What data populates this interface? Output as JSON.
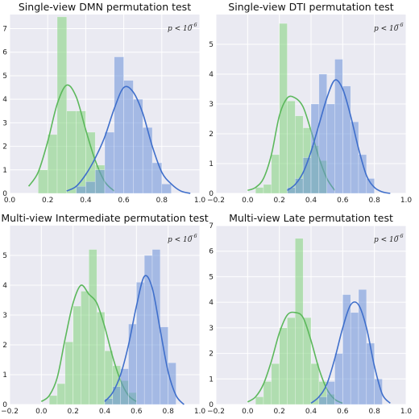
{
  "colors": {
    "background": "#eaeaf2",
    "grid": "#ffffff",
    "green_bar": "#7fd17a",
    "green_line": "#5cb85c",
    "blue_bar": "#6a8fd8",
    "blue_line": "#3f6fcb"
  },
  "chart_data": [
    {
      "type": "bar",
      "title": "Single-view DMN permutation test",
      "annotation": {
        "base": "p < 10",
        "exponent": "−6"
      },
      "xlim": [
        0.0,
        1.0
      ],
      "ylim": [
        0,
        7.6
      ],
      "xticks": [
        0.0,
        0.2,
        0.4,
        0.6,
        0.8,
        1.0
      ],
      "xtick_labels": [
        "0.0",
        "0.2",
        "0.4",
        "0.6",
        "0.8",
        "1.0"
      ],
      "yticks": [
        0,
        1,
        2,
        3,
        4,
        5,
        6,
        7
      ],
      "ytick_labels": [
        "0",
        "1",
        "2",
        "3",
        "4",
        "5",
        "6",
        "7"
      ],
      "series": [
        {
          "color": "green",
          "bins": [
            [
              0.1,
              0.15,
              0.0
            ],
            [
              0.15,
              0.2,
              1.0
            ],
            [
              0.2,
              0.25,
              2.5
            ],
            [
              0.25,
              0.3,
              7.5
            ],
            [
              0.3,
              0.35,
              3.5
            ],
            [
              0.35,
              0.4,
              3.5
            ],
            [
              0.4,
              0.45,
              2.6
            ],
            [
              0.45,
              0.5,
              1.2
            ]
          ],
          "kde": [
            [
              0.1,
              0.3
            ],
            [
              0.15,
              0.9
            ],
            [
              0.2,
              2.2
            ],
            [
              0.25,
              3.8
            ],
            [
              0.3,
              4.6
            ],
            [
              0.35,
              4.1
            ],
            [
              0.4,
              2.7
            ],
            [
              0.45,
              1.4
            ],
            [
              0.5,
              0.5
            ],
            [
              0.55,
              0.1
            ]
          ]
        },
        {
          "color": "blue",
          "bins": [
            [
              0.35,
              0.4,
              0.3
            ],
            [
              0.4,
              0.45,
              0.5
            ],
            [
              0.45,
              0.5,
              1.0
            ],
            [
              0.5,
              0.55,
              2.6
            ],
            [
              0.55,
              0.6,
              5.8
            ],
            [
              0.6,
              0.65,
              4.8
            ],
            [
              0.65,
              0.7,
              4.0
            ],
            [
              0.7,
              0.75,
              2.8
            ],
            [
              0.75,
              0.8,
              1.3
            ],
            [
              0.8,
              0.85,
              0.4
            ]
          ],
          "kde": [
            [
              0.3,
              0.1
            ],
            [
              0.35,
              0.3
            ],
            [
              0.4,
              0.8
            ],
            [
              0.45,
              1.5
            ],
            [
              0.5,
              2.4
            ],
            [
              0.55,
              3.6
            ],
            [
              0.6,
              4.5
            ],
            [
              0.65,
              4.3
            ],
            [
              0.7,
              3.4
            ],
            [
              0.75,
              2.0
            ],
            [
              0.8,
              0.9
            ],
            [
              0.85,
              0.4
            ],
            [
              0.9,
              0.1
            ],
            [
              0.95,
              0.0
            ]
          ]
        }
      ]
    },
    {
      "type": "bar",
      "title": "Single-view DTI permutation test",
      "annotation": {
        "base": "p < 10",
        "exponent": "−6"
      },
      "xlim": [
        -0.2,
        1.0
      ],
      "ylim": [
        0,
        6.0
      ],
      "xticks": [
        -0.2,
        0.0,
        0.2,
        0.4,
        0.6,
        0.8,
        1.0
      ],
      "xtick_labels": [
        "−0.2",
        "0.0",
        "0.2",
        "0.4",
        "0.6",
        "0.8",
        "1.0"
      ],
      "yticks": [
        0,
        1,
        2,
        3,
        4,
        5
      ],
      "ytick_labels": [
        "0",
        "1",
        "2",
        "3",
        "4",
        "5"
      ],
      "series": [
        {
          "color": "green",
          "bins": [
            [
              0.05,
              0.1,
              0.2
            ],
            [
              0.1,
              0.15,
              0.3
            ],
            [
              0.15,
              0.2,
              1.3
            ],
            [
              0.2,
              0.25,
              5.7
            ],
            [
              0.25,
              0.3,
              3.1
            ],
            [
              0.3,
              0.35,
              2.6
            ],
            [
              0.35,
              0.4,
              2.2
            ],
            [
              0.4,
              0.45,
              1.6
            ],
            [
              0.45,
              0.5,
              1.1
            ]
          ],
          "kde": [
            [
              0.0,
              0.1
            ],
            [
              0.05,
              0.2
            ],
            [
              0.1,
              0.5
            ],
            [
              0.15,
              1.3
            ],
            [
              0.2,
              2.6
            ],
            [
              0.25,
              3.2
            ],
            [
              0.3,
              3.2
            ],
            [
              0.35,
              2.9
            ],
            [
              0.4,
              2.1
            ],
            [
              0.45,
              1.2
            ],
            [
              0.5,
              0.5
            ],
            [
              0.55,
              0.1
            ]
          ]
        },
        {
          "color": "blue",
          "bins": [
            [
              0.25,
              0.3,
              0.2
            ],
            [
              0.3,
              0.35,
              0.5
            ],
            [
              0.35,
              0.4,
              1.2
            ],
            [
              0.4,
              0.45,
              3.0
            ],
            [
              0.45,
              0.5,
              4.0
            ],
            [
              0.5,
              0.55,
              3.0
            ],
            [
              0.55,
              0.6,
              4.5
            ],
            [
              0.6,
              0.65,
              3.6
            ],
            [
              0.65,
              0.7,
              2.4
            ],
            [
              0.7,
              0.75,
              1.3
            ],
            [
              0.75,
              0.8,
              0.5
            ]
          ],
          "kde": [
            [
              0.25,
              0.1
            ],
            [
              0.3,
              0.3
            ],
            [
              0.35,
              0.7
            ],
            [
              0.4,
              1.4
            ],
            [
              0.45,
              2.3
            ],
            [
              0.5,
              3.2
            ],
            [
              0.55,
              3.8
            ],
            [
              0.6,
              3.5
            ],
            [
              0.65,
              2.6
            ],
            [
              0.7,
              1.5
            ],
            [
              0.75,
              0.6
            ],
            [
              0.8,
              0.2
            ],
            [
              0.85,
              0.05
            ],
            [
              0.9,
              0.0
            ]
          ]
        }
      ]
    },
    {
      "type": "bar",
      "title": "Multi-view Intermediate permutation test",
      "annotation": {
        "base": "p < 10",
        "exponent": "−6"
      },
      "xlim": [
        -0.2,
        1.0
      ],
      "ylim": [
        0,
        6.0
      ],
      "xticks": [
        -0.2,
        0.0,
        0.2,
        0.4,
        0.6,
        0.8,
        1.0
      ],
      "xtick_labels": [
        "−0.2",
        "0.0",
        "0.2",
        "0.4",
        "0.6",
        "0.8",
        "1.0"
      ],
      "yticks": [
        0,
        1,
        2,
        3,
        4,
        5
      ],
      "ytick_labels": [
        "0",
        "1",
        "2",
        "3",
        "4",
        "5"
      ],
      "series": [
        {
          "color": "green",
          "bins": [
            [
              0.05,
              0.1,
              0.3
            ],
            [
              0.1,
              0.15,
              0.7
            ],
            [
              0.15,
              0.2,
              2.1
            ],
            [
              0.2,
              0.25,
              3.3
            ],
            [
              0.25,
              0.3,
              3.8
            ],
            [
              0.3,
              0.35,
              5.2
            ],
            [
              0.35,
              0.4,
              3.1
            ],
            [
              0.4,
              0.45,
              1.8
            ],
            [
              0.45,
              0.5,
              1.3
            ],
            [
              0.5,
              0.55,
              0.8
            ],
            [
              0.55,
              0.6,
              0.4
            ]
          ],
          "kde": [
            [
              0.0,
              0.1
            ],
            [
              0.05,
              0.3
            ],
            [
              0.1,
              0.9
            ],
            [
              0.15,
              2.2
            ],
            [
              0.2,
              3.4
            ],
            [
              0.25,
              4.0
            ],
            [
              0.3,
              3.7
            ],
            [
              0.35,
              3.4
            ],
            [
              0.4,
              2.6
            ],
            [
              0.45,
              1.6
            ],
            [
              0.5,
              0.8
            ],
            [
              0.55,
              0.3
            ],
            [
              0.6,
              0.1
            ]
          ]
        },
        {
          "color": "blue",
          "bins": [
            [
              0.4,
              0.45,
              0.2
            ],
            [
              0.45,
              0.5,
              0.6
            ],
            [
              0.5,
              0.55,
              1.2
            ],
            [
              0.55,
              0.6,
              2.7
            ],
            [
              0.6,
              0.65,
              4.1
            ],
            [
              0.65,
              0.7,
              5.0
            ],
            [
              0.7,
              0.75,
              5.2
            ],
            [
              0.75,
              0.8,
              2.6
            ],
            [
              0.8,
              0.85,
              1.4
            ]
          ],
          "kde": [
            [
              0.4,
              0.1
            ],
            [
              0.45,
              0.4
            ],
            [
              0.5,
              1.0
            ],
            [
              0.55,
              2.0
            ],
            [
              0.6,
              3.3
            ],
            [
              0.65,
              4.3
            ],
            [
              0.7,
              3.9
            ],
            [
              0.75,
              2.5
            ],
            [
              0.8,
              1.1
            ],
            [
              0.85,
              0.3
            ],
            [
              0.9,
              0.0
            ]
          ]
        }
      ]
    },
    {
      "type": "bar",
      "title": "Multi-view Late permutation test",
      "annotation": {
        "base": "p < 10",
        "exponent": "−6"
      },
      "xlim": [
        -0.2,
        1.0
      ],
      "ylim": [
        0,
        7.0
      ],
      "xticks": [
        -0.2,
        0.0,
        0.2,
        0.4,
        0.6,
        0.8,
        1.0
      ],
      "xtick_labels": [
        "−0.2",
        "0.0",
        "0.2",
        "0.4",
        "0.6",
        "0.8",
        "1.0"
      ],
      "yticks": [
        0,
        1,
        2,
        3,
        4,
        5,
        6,
        7
      ],
      "ytick_labels": [
        "0",
        "1",
        "2",
        "3",
        "4",
        "5",
        "6",
        "7"
      ],
      "series": [
        {
          "color": "green",
          "bins": [
            [
              0.05,
              0.1,
              0.3
            ],
            [
              0.1,
              0.15,
              0.9
            ],
            [
              0.15,
              0.2,
              1.6
            ],
            [
              0.2,
              0.25,
              3.0
            ],
            [
              0.25,
              0.3,
              3.4
            ],
            [
              0.3,
              0.35,
              6.5
            ],
            [
              0.35,
              0.4,
              3.4
            ],
            [
              0.4,
              0.45,
              1.6
            ],
            [
              0.45,
              0.5,
              0.9
            ],
            [
              0.5,
              0.55,
              0.4
            ]
          ],
          "kde": [
            [
              0.0,
              0.1
            ],
            [
              0.05,
              0.3
            ],
            [
              0.1,
              0.8
            ],
            [
              0.15,
              1.7
            ],
            [
              0.2,
              2.8
            ],
            [
              0.25,
              3.5
            ],
            [
              0.3,
              3.6
            ],
            [
              0.35,
              3.4
            ],
            [
              0.4,
              2.5
            ],
            [
              0.45,
              1.4
            ],
            [
              0.5,
              0.6
            ],
            [
              0.55,
              0.2
            ],
            [
              0.6,
              0.05
            ]
          ]
        },
        {
          "color": "blue",
          "bins": [
            [
              0.45,
              0.5,
              0.3
            ],
            [
              0.5,
              0.55,
              0.9
            ],
            [
              0.55,
              0.6,
              2.0
            ],
            [
              0.6,
              0.65,
              4.3
            ],
            [
              0.65,
              0.7,
              3.6
            ],
            [
              0.7,
              0.75,
              4.5
            ],
            [
              0.75,
              0.8,
              2.4
            ],
            [
              0.8,
              0.85,
              1.0
            ]
          ],
          "kde": [
            [
              0.4,
              0.05
            ],
            [
              0.45,
              0.3
            ],
            [
              0.5,
              0.8
            ],
            [
              0.55,
              1.8
            ],
            [
              0.6,
              3.0
            ],
            [
              0.65,
              3.9
            ],
            [
              0.7,
              3.9
            ],
            [
              0.75,
              3.0
            ],
            [
              0.8,
              1.5
            ],
            [
              0.85,
              0.4
            ],
            [
              0.9,
              0.05
            ]
          ]
        }
      ]
    }
  ]
}
